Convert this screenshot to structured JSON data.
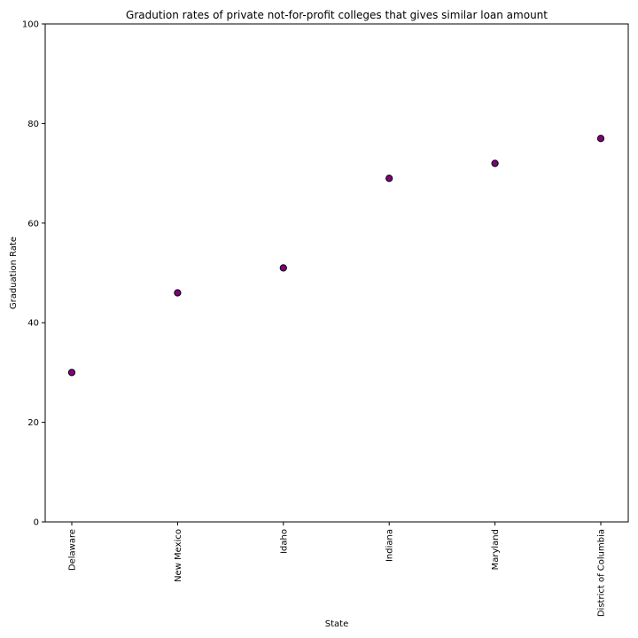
{
  "chart_data": {
    "type": "scatter",
    "title": "Gradution rates of private not-for-profit colleges that gives similar loan amount",
    "xlabel": "State",
    "ylabel": "Graduation Rate",
    "categories": [
      "Delaware",
      "New Mexico",
      "Idaho",
      "Indiana",
      "Maryland",
      "District of Columbia"
    ],
    "values": [
      30,
      46,
      51,
      69,
      72,
      77
    ],
    "ylim": [
      0,
      100
    ],
    "yticks": [
      0,
      20,
      40,
      60,
      80,
      100
    ],
    "grid": false,
    "point_color": "#800080",
    "point_edge_color": "#000000"
  }
}
